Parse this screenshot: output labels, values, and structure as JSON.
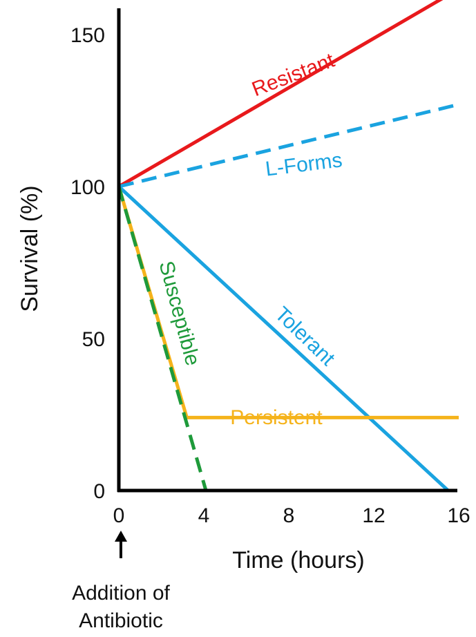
{
  "chart_data": {
    "type": "line",
    "xlabel": "Time (hours)",
    "ylabel": "Survival (%)",
    "xlim": [
      0,
      16
    ],
    "ylim": [
      0,
      165
    ],
    "x_ticks": [
      "0",
      "4",
      "8",
      "12",
      "16"
    ],
    "y_ticks": [
      "0",
      "50",
      "100",
      "150"
    ],
    "grid": false,
    "legend": "none (series labelled directly on lines)",
    "annotation": [
      "Addition of",
      "Antibiotic"
    ],
    "annotation_icon": "up-arrow-icon",
    "series": [
      {
        "name": "Resistant",
        "color": "#e8191c",
        "dash": "solid",
        "x": [
          0,
          16
        ],
        "y": [
          100,
          165
        ]
      },
      {
        "name": "L-Forms",
        "color": "#1aa3e0",
        "dash": "dashed",
        "x": [
          0,
          16
        ],
        "y": [
          100,
          127
        ]
      },
      {
        "name": "Tolerant",
        "color": "#1aa3e0",
        "dash": "solid",
        "x": [
          0,
          15.5
        ],
        "y": [
          100,
          0
        ]
      },
      {
        "name": "Persistent",
        "color": "#f5b31b",
        "dash": "solid",
        "x": [
          0,
          3.2,
          16
        ],
        "y": [
          100,
          24,
          24
        ]
      },
      {
        "name": "Susceptible",
        "color": "#1e9a3a",
        "dash": "dashed",
        "x": [
          0,
          4.1
        ],
        "y": [
          100,
          0
        ]
      }
    ]
  }
}
